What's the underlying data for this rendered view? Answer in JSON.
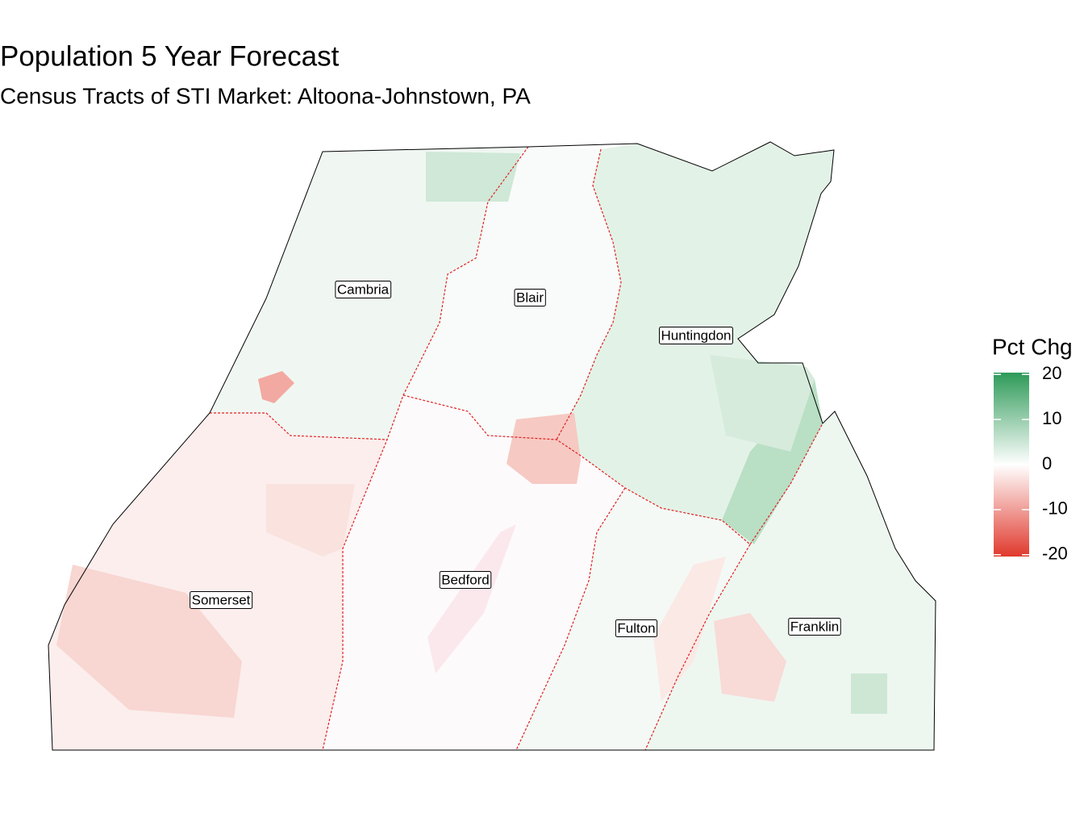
{
  "title": "Population 5 Year Forecast",
  "subtitle": "Census Tracts of STI Market: Altoona-Johnstown, PA",
  "counties": [
    {
      "label": "Cambria"
    },
    {
      "label": "Blair"
    },
    {
      "label": "Huntingdon"
    },
    {
      "label": "Bedford"
    },
    {
      "label": "Somerset"
    },
    {
      "label": "Fulton"
    },
    {
      "label": "Franklin"
    }
  ],
  "legend": {
    "title": "Pct Chg",
    "range": [
      -20.4,
      20.4
    ],
    "ticks": [
      20,
      10,
      0,
      -10,
      -20
    ],
    "colors": [
      "#e0392d",
      "#ffffff",
      "#2e9a58"
    ]
  }
}
